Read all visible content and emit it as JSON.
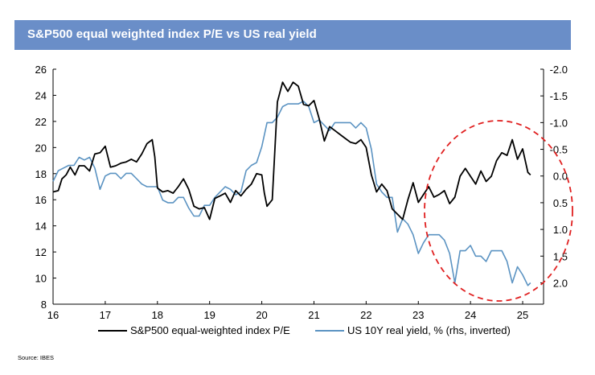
{
  "header": {
    "title": "S&P500 equal weighted index P/E vs US real yield"
  },
  "source": "Source: IBES",
  "colors": {
    "title_bar": "#6a8ec8",
    "pe_line": "#000000",
    "yield_line": "#5b93c2",
    "highlight": "#e02020"
  },
  "chart_data": {
    "type": "line",
    "title": "S&P500 equal weighted index P/E vs US real yield",
    "x_axis": {
      "ticks": [
        "16",
        "17",
        "18",
        "19",
        "20",
        "21",
        "22",
        "23",
        "24",
        "25"
      ],
      "range": [
        16,
        25.4
      ]
    },
    "y_left": {
      "ticks": [
        "26",
        "24",
        "22",
        "20",
        "18",
        "16",
        "14",
        "12",
        "10",
        "8"
      ],
      "range": [
        8,
        26
      ]
    },
    "y_right": {
      "ticks": [
        "-2.0",
        "-1.5",
        "-1.0",
        "-0.5",
        "0.0",
        "0.5",
        "1.0",
        "1.5",
        "2.0"
      ],
      "range": [
        -2.0,
        2.4
      ],
      "inverted": true
    },
    "legend": [
      "S&P500 equal-weighted index P/E",
      "US 10Y real yield, % (rhs, inverted)"
    ],
    "annotations": [
      {
        "type": "ellipse",
        "style": "dashed",
        "color": "red",
        "target": "2023-2025 divergence"
      }
    ],
    "series": [
      {
        "name": "S&P500 equal-weighted index P/E",
        "axis": "left",
        "x": [
          16.0,
          16.1,
          16.17,
          16.25,
          16.33,
          16.42,
          16.5,
          16.6,
          16.7,
          16.8,
          16.9,
          17.0,
          17.1,
          17.2,
          17.3,
          17.4,
          17.5,
          17.6,
          17.7,
          17.8,
          17.9,
          17.95,
          18.0,
          18.1,
          18.2,
          18.3,
          18.4,
          18.5,
          18.6,
          18.7,
          18.8,
          18.9,
          19.0,
          19.1,
          19.2,
          19.3,
          19.4,
          19.5,
          19.6,
          19.7,
          19.8,
          19.9,
          20.0,
          20.05,
          20.1,
          20.2,
          20.3,
          20.4,
          20.5,
          20.6,
          20.7,
          20.8,
          20.9,
          21.0,
          21.1,
          21.2,
          21.3,
          21.4,
          21.5,
          21.6,
          21.7,
          21.8,
          21.9,
          22.0,
          22.1,
          22.2,
          22.3,
          22.4,
          22.5,
          22.6,
          22.7,
          22.8,
          22.9,
          23.0,
          23.1,
          23.2,
          23.3,
          23.4,
          23.5,
          23.6,
          23.7,
          23.8,
          23.9,
          24.0,
          24.1,
          24.2,
          24.3,
          24.4,
          24.5,
          24.6,
          24.7,
          24.8,
          24.9,
          25.0,
          25.1,
          25.15
        ],
        "y": [
          16.6,
          16.7,
          17.6,
          17.9,
          18.5,
          17.9,
          18.6,
          18.6,
          18.2,
          19.5,
          19.6,
          20.1,
          18.5,
          18.6,
          18.8,
          18.9,
          19.1,
          18.9,
          19.5,
          20.3,
          20.6,
          19.3,
          16.9,
          16.6,
          16.7,
          16.5,
          17.0,
          17.6,
          16.8,
          15.5,
          15.3,
          15.4,
          14.5,
          16.1,
          16.3,
          16.5,
          15.8,
          16.7,
          16.3,
          16.8,
          17.2,
          18.0,
          17.9,
          16.5,
          15.5,
          16.0,
          23.5,
          25.0,
          24.3,
          25.0,
          24.7,
          23.3,
          23.2,
          23.6,
          22.2,
          20.5,
          21.6,
          21.3,
          21.0,
          20.7,
          20.4,
          20.3,
          20.6,
          20.0,
          17.9,
          16.6,
          17.2,
          16.7,
          15.3,
          14.9,
          14.5,
          16.0,
          17.3,
          15.8,
          16.4,
          17.0,
          16.2,
          16.4,
          16.7,
          15.7,
          16.2,
          17.8,
          18.4,
          17.8,
          17.2,
          18.2,
          17.4,
          17.8,
          19.0,
          19.6,
          19.4,
          20.6,
          19.1,
          19.9,
          18.1,
          17.9
        ]
      },
      {
        "name": "US 10Y real yield, % (rhs, inverted)",
        "axis": "right",
        "x": [
          16.0,
          16.1,
          16.2,
          16.3,
          16.4,
          16.5,
          16.6,
          16.7,
          16.8,
          16.9,
          17.0,
          17.1,
          17.2,
          17.3,
          17.4,
          17.5,
          17.6,
          17.7,
          17.8,
          17.9,
          18.0,
          18.1,
          18.2,
          18.3,
          18.4,
          18.5,
          18.6,
          18.7,
          18.8,
          18.9,
          19.0,
          19.1,
          19.2,
          19.3,
          19.4,
          19.5,
          19.6,
          19.7,
          19.8,
          19.9,
          20.0,
          20.1,
          20.2,
          20.3,
          20.4,
          20.5,
          20.6,
          20.7,
          20.8,
          20.9,
          21.0,
          21.1,
          21.2,
          21.3,
          21.4,
          21.5,
          21.6,
          21.7,
          21.8,
          21.9,
          22.0,
          22.1,
          22.2,
          22.3,
          22.4,
          22.5,
          22.6,
          22.7,
          22.8,
          22.9,
          23.0,
          23.1,
          23.2,
          23.3,
          23.4,
          23.5,
          23.6,
          23.7,
          23.8,
          23.9,
          24.0,
          24.1,
          24.2,
          24.3,
          24.4,
          24.5,
          24.6,
          24.7,
          24.8,
          24.9,
          25.0,
          25.1,
          25.15
        ],
        "y": [
          0.1,
          -0.1,
          -0.15,
          -0.2,
          -0.2,
          -0.35,
          -0.3,
          -0.35,
          -0.15,
          0.25,
          0.0,
          -0.05,
          -0.05,
          0.05,
          -0.05,
          -0.05,
          0.05,
          0.15,
          0.2,
          0.2,
          0.2,
          0.45,
          0.5,
          0.5,
          0.4,
          0.4,
          0.6,
          0.75,
          0.75,
          0.55,
          0.55,
          0.4,
          0.3,
          0.2,
          0.25,
          0.35,
          0.3,
          -0.1,
          -0.2,
          -0.25,
          -0.55,
          -1.0,
          -1.0,
          -1.1,
          -1.3,
          -1.35,
          -1.35,
          -1.35,
          -1.4,
          -1.3,
          -1.0,
          -1.05,
          -0.95,
          -0.85,
          -1.0,
          -1.0,
          -1.0,
          -1.0,
          -0.9,
          -1.0,
          -0.9,
          -0.5,
          0.15,
          0.3,
          0.4,
          0.4,
          1.05,
          0.8,
          0.9,
          1.1,
          1.45,
          1.25,
          1.1,
          1.1,
          1.1,
          1.2,
          1.45,
          2.0,
          1.4,
          1.4,
          1.3,
          1.5,
          1.5,
          1.6,
          1.4,
          1.4,
          1.4,
          1.6,
          2.0,
          1.7,
          1.85,
          2.05,
          2.0
        ]
      }
    ]
  }
}
